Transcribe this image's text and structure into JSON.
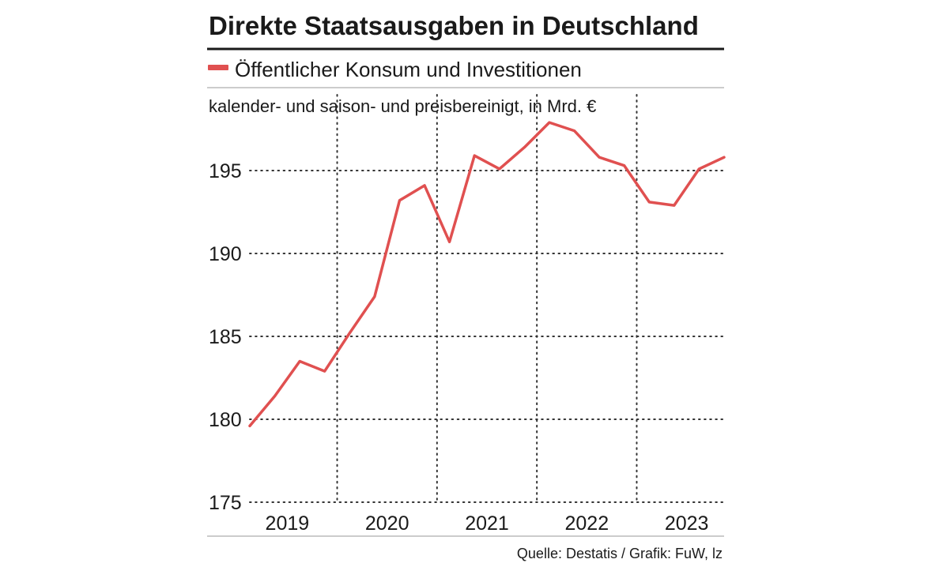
{
  "chart_data": {
    "type": "line",
    "title": "Direkte Staatsausgaben in Deutschland",
    "subtitle": "kalender- und saison- und preisbereinigt, in Mrd. €",
    "source": "Quelle: Destatis / Grafik: FuW, lz",
    "legend_position": "top-left",
    "xlabel": "",
    "ylabel": "",
    "ylim": [
      175,
      199
    ],
    "yticks": [
      175,
      180,
      185,
      190,
      195
    ],
    "x_years": [
      "2019",
      "2020",
      "2021",
      "2022",
      "2023"
    ],
    "series": [
      {
        "name": "Öffentlicher Konsum und Investitionen",
        "color": "#e05050",
        "x": [
          "2019 Q1",
          "2019 Q2",
          "2019 Q3",
          "2019 Q4",
          "2020 Q1",
          "2020 Q2",
          "2020 Q3",
          "2020 Q4",
          "2021 Q1",
          "2021 Q2",
          "2021 Q3",
          "2021 Q4",
          "2022 Q1",
          "2022 Q2",
          "2022 Q3",
          "2022 Q4",
          "2023 Q1",
          "2023 Q2",
          "2023 Q3",
          "2023 Q4"
        ],
        "values": [
          179.6,
          181.4,
          183.5,
          182.9,
          185.2,
          187.4,
          193.2,
          194.1,
          190.7,
          195.9,
          195.1,
          196.4,
          197.9,
          197.4,
          195.8,
          195.3,
          193.1,
          192.9,
          195.1,
          195.8
        ]
      }
    ]
  },
  "colors": {
    "line": "#e05050",
    "text": "#1a1a1a",
    "rule": "#1a1a1a",
    "thin_rule": "#999999"
  }
}
